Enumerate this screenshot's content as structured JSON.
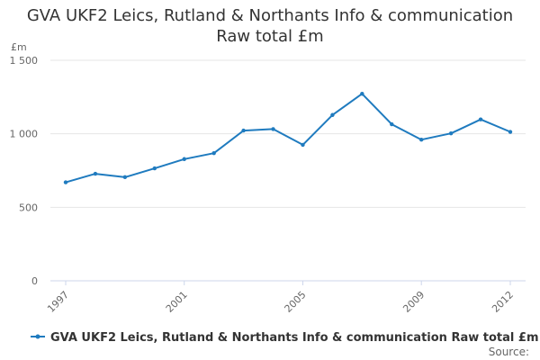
{
  "title_line1": "GVA UKF2 Leics, Rutland & Northants Info & communication",
  "title_line2": "Raw total £m",
  "unit_label": "£m",
  "legend_label": "GVA UKF2 Leics, Rutland & Northants Info & communication Raw total £m",
  "source_label": "Source:",
  "colors": {
    "series": "#1f7bbf",
    "grid": "#e6e6e6",
    "axis": "#ccd6eb"
  },
  "chart_data": {
    "type": "line",
    "title": "GVA UKF2 Leics, Rutland & Northants Info & communication Raw total £m",
    "ylabel": "£m",
    "xlabel": "",
    "ylim": [
      0,
      1500
    ],
    "yticks": [
      0,
      500,
      1000,
      1500
    ],
    "ytick_labels": [
      "0",
      "500",
      "1 000",
      "1 500"
    ],
    "xlim": [
      1997,
      2012
    ],
    "xticks": [
      1997,
      2001,
      2005,
      2009,
      2012
    ],
    "grid": true,
    "legend_position": "bottom",
    "series": [
      {
        "name": "GVA UKF2 Leics, Rutland & Northants Info & communication Raw total £m",
        "x": [
          1997,
          1998,
          1999,
          2000,
          2001,
          2002,
          2003,
          2004,
          2005,
          2006,
          2007,
          2008,
          2009,
          2010,
          2011,
          2012
        ],
        "values": [
          670,
          728,
          705,
          765,
          828,
          868,
          1022,
          1032,
          925,
          1128,
          1272,
          1065,
          960,
          1003,
          1098,
          1013
        ]
      }
    ]
  }
}
